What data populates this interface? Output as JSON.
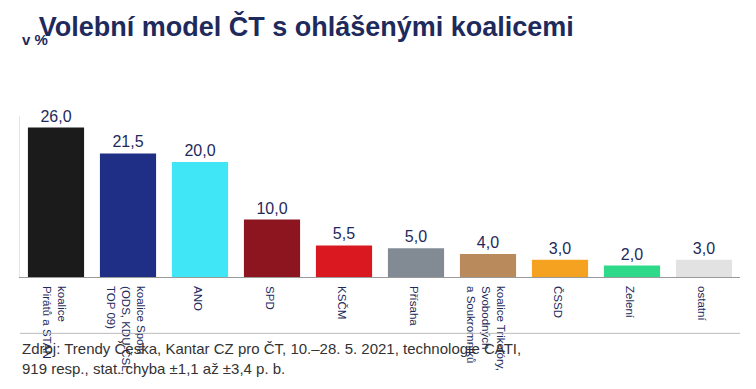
{
  "chart_data": {
    "type": "bar",
    "title": "Volební model ČT s ohlášenými koalicemi",
    "subtitle": "v %",
    "categories": [
      "koalice\nPirátů a STAN",
      "koalice Spolu\n(ODS, KDU-ČSL,\nTOP 09)",
      "ANO",
      "SPD",
      "KSČM",
      "Přísaha",
      "koalice Trikolóry,\nSvobodných\na Soukromníků",
      "ČSSD",
      "Zelení",
      "ostatní"
    ],
    "values": [
      26.0,
      21.5,
      20.0,
      10.0,
      5.5,
      5.0,
      4.0,
      3.0,
      2.0,
      3.0
    ],
    "value_labels": [
      "26,0",
      "21,5",
      "20,0",
      "10,0",
      "5,5",
      "5,0",
      "4,0",
      "3,0",
      "2,0",
      "3,0"
    ],
    "colors": [
      "#1b1b1b",
      "#1f2f86",
      "#40e6f6",
      "#8c1520",
      "#d9181f",
      "#828a93",
      "#b98b5c",
      "#f5a221",
      "#2fd98a",
      "#e2e2e2"
    ],
    "data_labels": true,
    "tick_labels": "x",
    "ylim": [
      0,
      28
    ],
    "yticks": [],
    "grid": false,
    "annotations": [
      "Zdroj: Trendy Česka, Kantar CZ pro ČT, 10.–28. 5. 2021, technologie CATI,\n919 resp., stat. chyba ±1,1 až ±3,4 p. b."
    ]
  }
}
